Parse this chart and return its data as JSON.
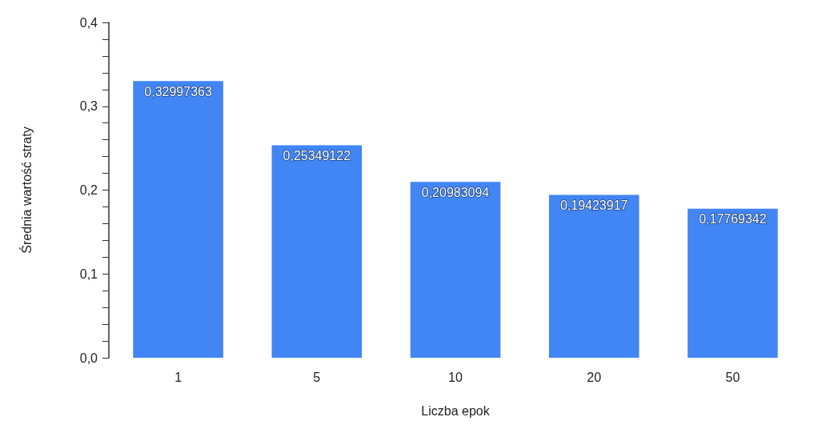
{
  "chart_data": {
    "type": "bar",
    "xlabel": "Liczba epok",
    "ylabel": "Średnia wartość straty",
    "categories": [
      "1",
      "5",
      "10",
      "20",
      "50"
    ],
    "values": [
      0.32997363,
      0.25349122,
      0.20983094,
      0.19423917,
      0.17769342
    ],
    "value_labels": [
      "0,32997363",
      "0,25349122",
      "0,20983094",
      "0,19423917",
      "0,17769342"
    ],
    "color": "#4285f4",
    "ylim": [
      0,
      0.4
    ],
    "yticks": [
      {
        "value": 0,
        "label": "0,0"
      },
      {
        "value": 0.02,
        "label": null
      },
      {
        "value": 0.04,
        "label": null
      },
      {
        "value": 0.06,
        "label": null
      },
      {
        "value": 0.08,
        "label": null
      },
      {
        "value": 0.1,
        "label": "0,1"
      },
      {
        "value": 0.12,
        "label": null
      },
      {
        "value": 0.14,
        "label": null
      },
      {
        "value": 0.16,
        "label": null
      },
      {
        "value": 0.18,
        "label": null
      },
      {
        "value": 0.2,
        "label": "0,2"
      },
      {
        "value": 0.22,
        "label": null
      },
      {
        "value": 0.24,
        "label": null
      },
      {
        "value": 0.26,
        "label": null
      },
      {
        "value": 0.28,
        "label": null
      },
      {
        "value": 0.3,
        "label": "0,3"
      },
      {
        "value": 0.32,
        "label": null
      },
      {
        "value": 0.34,
        "label": null
      },
      {
        "value": 0.36,
        "label": null
      },
      {
        "value": 0.38,
        "label": null
      },
      {
        "value": 0.4,
        "label": "0,4"
      }
    ],
    "grid": false
  }
}
